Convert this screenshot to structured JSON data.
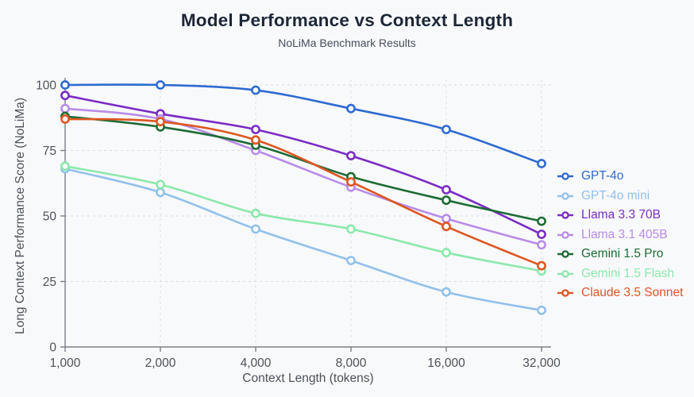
{
  "header": {
    "title": "Model Performance vs Context Length",
    "subtitle": "NoLiMa Benchmark Results"
  },
  "chart_data": {
    "type": "line",
    "title": "Model Performance vs Context Length",
    "subtitle": "NoLiMa Benchmark Results",
    "xlabel": "Context Length (tokens)",
    "ylabel": "Long Context Performance Score (NoLiMa)",
    "x_scale": "log2",
    "x": [
      1000,
      2000,
      4000,
      8000,
      16000,
      32000
    ],
    "x_tick_labels": [
      "1,000",
      "2,000",
      "4,000",
      "8,000",
      "16,000",
      "32,000"
    ],
    "y_ticks": [
      0,
      25,
      50,
      75,
      100
    ],
    "ylim": [
      0,
      100
    ],
    "grid": true,
    "legend_position": "right",
    "marker": "open-circle",
    "series": [
      {
        "name": "GPT-4o",
        "color": "#2e6bd0",
        "values": [
          100,
          100,
          98,
          91,
          83,
          70
        ]
      },
      {
        "name": "GPT-4o mini",
        "color": "#92c1ec",
        "values": [
          68,
          59,
          45,
          33,
          21,
          14
        ]
      },
      {
        "name": "Llama 3.3 70B",
        "color": "#7b2cc4",
        "values": [
          96,
          89,
          83,
          73,
          60,
          43
        ]
      },
      {
        "name": "Llama 3.1 405B",
        "color": "#b88ce8",
        "values": [
          91,
          87,
          75,
          61,
          49,
          39
        ]
      },
      {
        "name": "Gemini 1.5 Pro",
        "color": "#1d6c35",
        "values": [
          88,
          84,
          77,
          65,
          56,
          48
        ]
      },
      {
        "name": "Gemini 1.5 Flash",
        "color": "#8ce8ad",
        "values": [
          69,
          62,
          51,
          45,
          36,
          29
        ]
      },
      {
        "name": "Claude 3.5 Sonnet",
        "color": "#dd5722",
        "values": [
          87,
          86,
          79,
          63,
          46,
          31
        ]
      }
    ],
    "colors": {
      "background": "#f8f9fb",
      "title_text": "#1d2737",
      "subtitle_text": "#454e5c",
      "axis_text": "#4c525a",
      "axis_line": "#7b8088",
      "gridline": "#d9dde3",
      "marker_fill": "#ffffff"
    }
  }
}
